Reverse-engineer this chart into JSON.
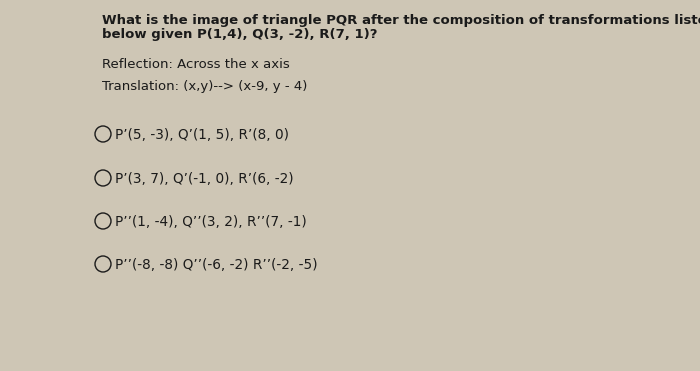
{
  "bg_color": "#cec6b5",
  "text_color": "#1a1a1a",
  "question_line1": "What is the image of triangle PQR after the composition of transformations listed",
  "question_line2": "below given P(1,4), Q(3, -2), R(7, 1)?",
  "reflection": "Reflection: Across the x axis",
  "translation": "Translation: (x,y)--> (x-9, y - 4)",
  "options": [
    "P’(5, -3), Q’(1, 5), R’(8, 0)",
    "P’(3, 7), Q’(-1, 0), R’(6, -2)",
    "P’’(1, -4), Q’’(3, 2), R’’(7, -1)",
    "P’’(-8, -8) Q’’(-6, -2) R’’(-2, -5)"
  ],
  "figsize": [
    7.0,
    3.71
  ],
  "dpi": 100,
  "fontsize": 9.5,
  "option_fontsize": 9.8
}
